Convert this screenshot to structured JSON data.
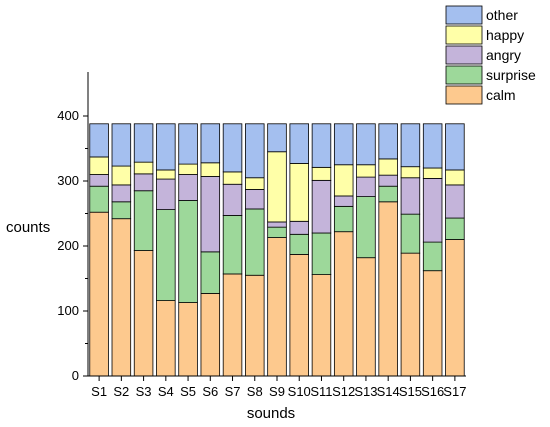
{
  "chart_data": {
    "type": "bar",
    "stacked": true,
    "title": "",
    "xlabel": "sounds",
    "ylabel": "counts",
    "ylim": [
      0,
      420
    ],
    "yticks": [
      0,
      100,
      200,
      300,
      400
    ],
    "grid": false,
    "legend_position": "top-right",
    "categories": [
      "S1",
      "S2",
      "S3",
      "S4",
      "S5",
      "S6",
      "S7",
      "S8",
      "S9",
      "S10",
      "S11",
      "S12",
      "S13",
      "S14",
      "S15",
      "S16",
      "S17"
    ],
    "series": [
      {
        "name": "calm",
        "color": "#FDC98E",
        "values": [
          252,
          242,
          193,
          116,
          113,
          127,
          157,
          155,
          213,
          187,
          156,
          222,
          182,
          268,
          189,
          162,
          210
        ]
      },
      {
        "name": "surprise",
        "color": "#9DD89A",
        "values": [
          40,
          26,
          92,
          140,
          157,
          64,
          90,
          102,
          16,
          31,
          64,
          39,
          94,
          24,
          60,
          44,
          33
        ]
      },
      {
        "name": "angry",
        "color": "#C4B4DA",
        "values": [
          18,
          26,
          26,
          47,
          40,
          116,
          48,
          30,
          8,
          20,
          81,
          16,
          30,
          17,
          56,
          98,
          51
        ]
      },
      {
        "name": "happy",
        "color": "#FFFFA8",
        "values": [
          27,
          29,
          18,
          14,
          16,
          21,
          19,
          18,
          108,
          89,
          20,
          48,
          19,
          25,
          17,
          16,
          23
        ]
      },
      {
        "name": "other",
        "color": "#A4BFEF",
        "values": [
          51,
          65,
          59,
          71,
          62,
          60,
          74,
          83,
          43,
          61,
          67,
          63,
          63,
          54,
          66,
          68,
          71
        ]
      }
    ],
    "legend_order": [
      "other",
      "happy",
      "angry",
      "surprise",
      "calm"
    ]
  }
}
